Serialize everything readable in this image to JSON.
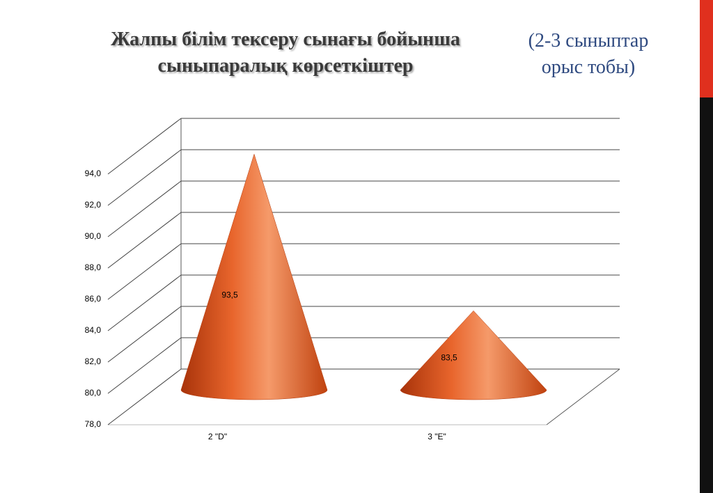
{
  "chart_data": {
    "type": "cone",
    "title": "Жалпы білім тексеру сынағы бойынша сыныпаралық көрсеткіштер",
    "subtitle": "(2-3 сыныптар орыс тобы)",
    "categories": [
      "2 \"D\"",
      "3 \"E\""
    ],
    "values": [
      93.5,
      83.5
    ],
    "value_labels": [
      "93,5",
      "83,5"
    ],
    "color": "#e0571f",
    "ylim": [
      78,
      94
    ],
    "yticks": [
      {
        "value": 78,
        "label": "78,0"
      },
      {
        "value": 80,
        "label": "80,0"
      },
      {
        "value": 82,
        "label": "82,0"
      },
      {
        "value": 84,
        "label": "84,0"
      },
      {
        "value": 86,
        "label": "86,0"
      },
      {
        "value": 88,
        "label": "88,0"
      },
      {
        "value": 90,
        "label": "90,0"
      },
      {
        "value": 92,
        "label": "92,0"
      },
      {
        "value": 94,
        "label": "94,0"
      }
    ],
    "grid": true
  }
}
